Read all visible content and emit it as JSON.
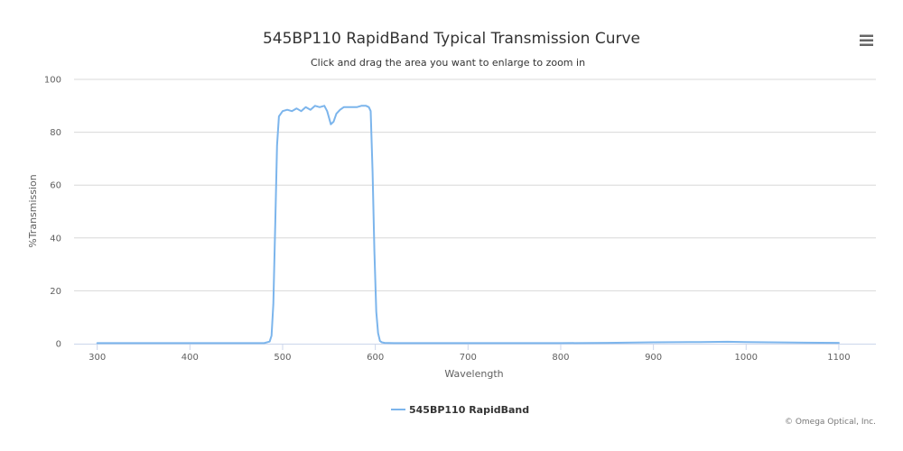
{
  "chart_data": {
    "type": "line",
    "title": "545BP110 RapidBand Typical Transmission Curve",
    "subtitle": "Click and drag the area you want to enlarge to zoom in",
    "xlabel": "Wavelength",
    "ylabel": "%Transmission",
    "xlim": [
      275,
      1140
    ],
    "ylim": [
      0,
      100
    ],
    "xticks": [
      300,
      400,
      500,
      600,
      700,
      800,
      900,
      1000,
      1100
    ],
    "yticks": [
      0,
      20,
      40,
      60,
      80,
      100
    ],
    "grid": true,
    "legend": "bottom-center",
    "series": [
      {
        "name": "545BP110 RapidBand",
        "color": "#7cb5ec",
        "x": [
          300,
          480,
          486,
          488,
          490,
          492,
          494,
          496,
          500,
          505,
          510,
          515,
          520,
          525,
          530,
          535,
          540,
          545,
          548,
          552,
          555,
          558,
          562,
          566,
          570,
          575,
          580,
          585,
          590,
          593,
          595,
          597,
          599,
          601,
          603,
          605,
          607,
          610,
          620,
          700,
          800,
          850,
          900,
          950,
          980,
          1000,
          1050,
          1100
        ],
        "y": [
          0.2,
          0.2,
          0.8,
          3,
          15,
          45,
          75,
          86,
          88,
          88.5,
          88,
          89,
          88,
          89.5,
          88.5,
          90,
          89.5,
          90,
          88,
          83,
          84,
          87,
          88.5,
          89.5,
          89.5,
          89.5,
          89.5,
          90,
          90,
          89.5,
          88,
          65,
          35,
          12,
          4,
          1,
          0.5,
          0.3,
          0.2,
          0.2,
          0.2,
          0.3,
          0.5,
          0.6,
          0.7,
          0.6,
          0.4,
          0.3
        ]
      }
    ]
  },
  "credit": "© Omega Optical, Inc.",
  "menu_icon": "hamburger-menu-icon"
}
